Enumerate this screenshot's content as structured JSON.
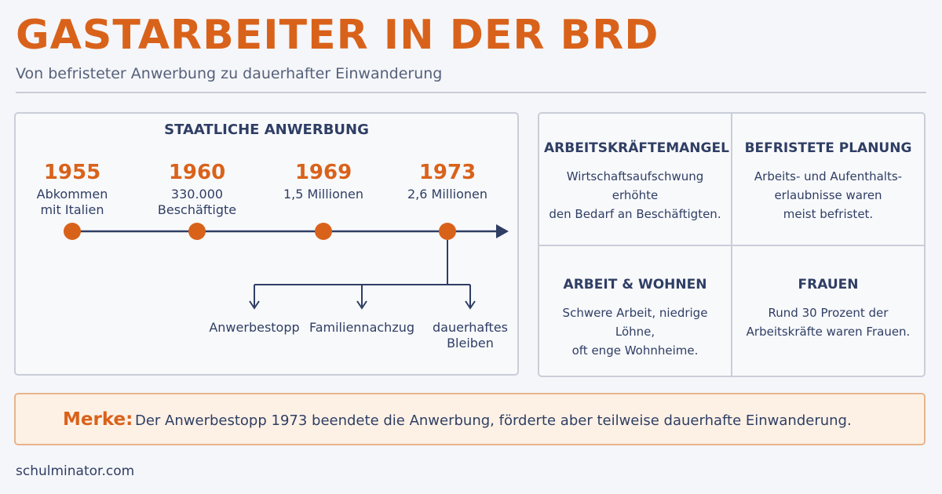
{
  "header": {
    "title": "GASTARBEITER IN DER BRD",
    "subtitle": "Von befristeter Anwerbung zu dauerhafter Einwanderung"
  },
  "timeline": {
    "title": "STAATLICHE ANWERBUNG",
    "events": [
      {
        "year": "1955",
        "desc_lines": [
          "Abkommen",
          "mit Italien"
        ]
      },
      {
        "year": "1960",
        "desc_lines": [
          "330.000",
          "Beschäftigte"
        ]
      },
      {
        "year": "1969",
        "desc_lines": [
          "1,5 Millionen"
        ]
      },
      {
        "year": "1973",
        "desc_lines": [
          "2,6 Millionen"
        ]
      }
    ],
    "branches": [
      {
        "lines": [
          "Anwerbestopp"
        ]
      },
      {
        "lines": [
          "Familiennachzug"
        ]
      },
      {
        "lines": [
          "dauerhaftes",
          "Bleiben"
        ]
      }
    ],
    "colors": {
      "dot": "#d9621b",
      "line": "#2f3e64"
    }
  },
  "cards": [
    {
      "title": "ARBEITSKRÄFTEMANGEL",
      "lines": [
        "Wirtschaftsaufschwung erhöhte",
        "den Bedarf an Beschäftigten."
      ]
    },
    {
      "title": "BEFRISTETE PLANUNG",
      "lines": [
        "Arbeits- und Aufenthalts-",
        "erlaubnisse waren",
        "meist befristet."
      ]
    },
    {
      "title": "ARBEIT & WOHNEN",
      "lines": [
        "Schwere Arbeit, niedrige Löhne,",
        "oft enge Wohnheime."
      ]
    },
    {
      "title": "FRAUEN",
      "lines": [
        "Rund 30 Prozent der",
        "Arbeitskräfte waren Frauen."
      ]
    }
  ],
  "note": {
    "label": "Merke:",
    "text": "Der Anwerbestopp 1973 beendete die Anwerbung, förderte aber teilweise dauerhafte Einwanderung."
  },
  "footer": {
    "source": "schulminator.com"
  }
}
